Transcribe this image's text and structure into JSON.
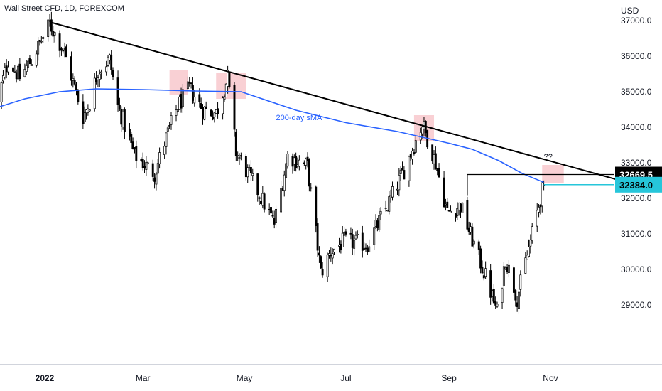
{
  "header": {
    "title": "Wall Street CFD, 1D, FOREXCOM",
    "currency": "USD"
  },
  "chart_data": {
    "type": "candlestick",
    "title": "Wall Street CFD, 1D, FOREXCOM",
    "ylabel": "USD",
    "ylim": [
      28000,
      38300
    ],
    "y_ticks": [
      "29000.0",
      "30000.0",
      "31000.0",
      "32000.0",
      "33000.0",
      "34000.0",
      "35000.0",
      "36000.0",
      "37000.0",
      "38000.0"
    ],
    "x_ticks": [
      {
        "date": "2022-01-01",
        "label": "2022",
        "bold": true
      },
      {
        "date": "2022-03-01",
        "label": "Mar"
      },
      {
        "date": "2022-05-01",
        "label": "May"
      },
      {
        "date": "2022-07-01",
        "label": "Jul"
      },
      {
        "date": "2022-09-01",
        "label": "Sep"
      },
      {
        "date": "2022-11-01",
        "label": "Nov"
      }
    ],
    "x_range": [
      "2021-12-03",
      "2022-12-31"
    ],
    "close_path": [
      [
        "2021-12-03",
        34600
      ],
      [
        "2021-12-10",
        35900
      ],
      [
        "2021-12-17",
        35400
      ],
      [
        "2021-12-24",
        35900
      ],
      [
        "2022-01-04",
        36900
      ],
      [
        "2022-01-13",
        36100
      ],
      [
        "2022-01-24",
        34300
      ],
      [
        "2022-01-28",
        34700
      ],
      [
        "2022-02-02",
        35600
      ],
      [
        "2022-02-09",
        35900
      ],
      [
        "2022-02-14",
        34600
      ],
      [
        "2022-02-24",
        33200
      ],
      [
        "2022-03-08",
        32700
      ],
      [
        "2022-03-15",
        33700
      ],
      [
        "2022-03-22",
        34600
      ],
      [
        "2022-03-29",
        35100
      ],
      [
        "2022-04-06",
        34500
      ],
      [
        "2022-04-14",
        34400
      ],
      [
        "2022-04-21",
        35400
      ],
      [
        "2022-04-26",
        33300
      ],
      [
        "2022-05-09",
        32200
      ],
      [
        "2022-05-19",
        31300
      ],
      [
        "2022-05-27",
        33200
      ],
      [
        "2022-06-08",
        32900
      ],
      [
        "2022-06-16",
        29900
      ],
      [
        "2022-06-22",
        30500
      ],
      [
        "2022-06-30",
        30800
      ],
      [
        "2022-07-14",
        30700
      ],
      [
        "2022-07-26",
        31800
      ],
      [
        "2022-08-05",
        32800
      ],
      [
        "2022-08-16",
        34100
      ],
      [
        "2022-08-24",
        33000
      ],
      [
        "2022-08-31",
        31600
      ],
      [
        "2022-09-08",
        31800
      ],
      [
        "2022-09-13",
        31100
      ],
      [
        "2022-09-23",
        29800
      ],
      [
        "2022-09-30",
        28800
      ],
      [
        "2022-10-05",
        30300
      ],
      [
        "2022-10-12",
        29200
      ],
      [
        "2022-10-21",
        31000
      ],
      [
        "2022-10-28",
        32400
      ]
    ],
    "series": [
      {
        "name": "200-day sMA",
        "color": "#2962ff",
        "points": [
          [
            "2021-12-03",
            34550
          ],
          [
            "2021-12-20",
            34800
          ],
          [
            "2022-01-10",
            35000
          ],
          [
            "2022-02-01",
            35080
          ],
          [
            "2022-03-01",
            35060
          ],
          [
            "2022-04-01",
            35020
          ],
          [
            "2022-04-29",
            35000
          ],
          [
            "2022-06-01",
            34480
          ],
          [
            "2022-07-01",
            34130
          ],
          [
            "2022-08-01",
            33880
          ],
          [
            "2022-09-01",
            33550
          ],
          [
            "2022-09-15",
            33380
          ],
          [
            "2022-10-01",
            33060
          ],
          [
            "2022-10-15",
            32700
          ],
          [
            "2022-10-28",
            32450
          ]
        ]
      }
    ],
    "trendline": {
      "color": "#000000",
      "points": [
        [
          "2022-01-04",
          36960
        ],
        [
          "2022-12-17",
          32450
        ]
      ]
    },
    "resistance_line": {
      "color": "#000000",
      "points": [
        [
          "2022-09-12",
          32669.5
        ],
        [
          "2022-12-31",
          32669.5
        ]
      ]
    },
    "current_price_line": {
      "color": "#26c6da",
      "points": [
        [
          "2022-10-28",
          32384.0
        ],
        [
          "2022-12-31",
          32384.0
        ]
      ]
    },
    "highlight_zones": [
      {
        "from": "2022-03-17",
        "to": "2022-03-28",
        "low": 34900,
        "high": 35620,
        "color": "#f8c8cc"
      },
      {
        "from": "2022-04-14",
        "to": "2022-05-02",
        "low": 34800,
        "high": 35520,
        "color": "#f8c8cc"
      },
      {
        "from": "2022-08-11",
        "to": "2022-08-23",
        "low": 33600,
        "high": 34340,
        "color": "#f8c8cc"
      },
      {
        "from": "2022-10-27",
        "to": "2022-11-09",
        "low": 32440,
        "high": 32940,
        "color": "#f8c8cc"
      }
    ],
    "annotations": [
      {
        "text": "200-day sMA",
        "date": "2022-05-20",
        "value": 34200,
        "color": "#2962ff"
      },
      {
        "text": "??",
        "date": "2022-10-28",
        "value": 33100,
        "color": "#131722"
      }
    ],
    "price_labels": [
      {
        "text": "32669.5",
        "value": 32669.5,
        "bg": "#000000",
        "fg": "#ffffff"
      },
      {
        "text": "32384.0",
        "value": 32384.0,
        "bg": "#26c6da",
        "fg": "#000000"
      }
    ],
    "grid": false,
    "legend": "none"
  }
}
